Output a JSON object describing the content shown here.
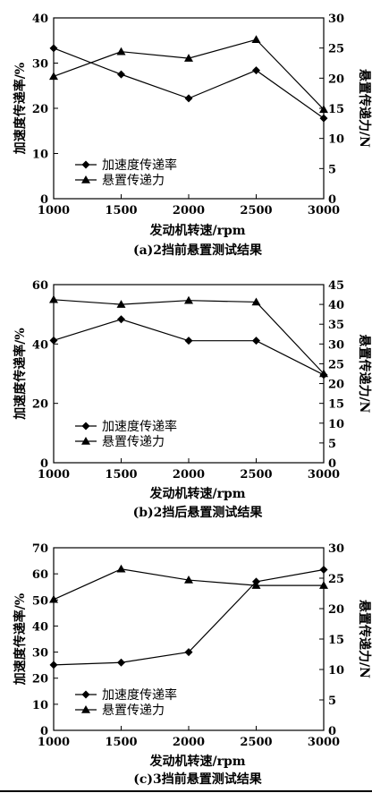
{
  "chart_data": [
    {
      "type": "line",
      "caption": "(a)2挡前悬置测试结果",
      "xlabel": "发动机转速/rpm",
      "ylabel_left": "加速度传递率/%",
      "ylabel_right": "悬置传递力/N",
      "x": [
        1000,
        1500,
        2000,
        2500,
        3000
      ],
      "xlim": [
        1000,
        3000
      ],
      "xticks": [
        1000,
        1500,
        2000,
        2500,
        3000
      ],
      "ylim_left": [
        0,
        40
      ],
      "yticks_left": [
        0,
        10,
        20,
        30,
        40
      ],
      "ylim_right": [
        0,
        30
      ],
      "yticks_right": [
        0,
        5,
        10,
        15,
        20,
        25,
        30
      ],
      "grid": false,
      "legend_position": "lower-left",
      "series": [
        {
          "name": "加速度传递率",
          "axis": "left",
          "marker": "diamond",
          "values": [
            33.3,
            27.5,
            22.2,
            28.4,
            17.8
          ]
        },
        {
          "name": "悬置传递力",
          "axis": "right",
          "marker": "triangle",
          "values": [
            20.3,
            24.4,
            23.3,
            26.4,
            14.8
          ]
        }
      ]
    },
    {
      "type": "line",
      "caption": "(b)2挡后悬置测试结果",
      "xlabel": "发动机转速/rpm",
      "ylabel_left": "加速度传递率/%",
      "ylabel_right": "悬置传递力/N",
      "x": [
        1000,
        1500,
        2000,
        2500,
        3000
      ],
      "xlim": [
        1000,
        3000
      ],
      "xticks": [
        1000,
        1500,
        2000,
        2500,
        3000
      ],
      "ylim_left": [
        0,
        60
      ],
      "yticks_left": [
        0,
        20,
        40,
        60
      ],
      "ylim_right": [
        0,
        45
      ],
      "yticks_right": [
        0,
        5,
        10,
        15,
        20,
        25,
        30,
        35,
        40,
        45
      ],
      "grid": false,
      "legend_position": "lower-left",
      "series": [
        {
          "name": "加速度传递率",
          "axis": "left",
          "marker": "diamond",
          "values": [
            41.2,
            48.3,
            41.1,
            41.1,
            29.6
          ]
        },
        {
          "name": "悬置传递力",
          "axis": "right",
          "marker": "triangle",
          "values": [
            41.2,
            40.0,
            41.0,
            40.6,
            22.5
          ]
        }
      ]
    },
    {
      "type": "line",
      "caption": "(c)3挡前悬置测试结果",
      "xlabel": "发动机转速/rpm",
      "ylabel_left": "加速度传递率/%",
      "ylabel_right": "悬置传递力/N",
      "x": [
        1000,
        1500,
        2000,
        2500,
        3000
      ],
      "xlim": [
        1000,
        3000
      ],
      "xticks": [
        1000,
        1500,
        2000,
        2500,
        3000
      ],
      "ylim_left": [
        0,
        70
      ],
      "yticks_left": [
        0,
        10,
        20,
        30,
        40,
        50,
        60,
        70
      ],
      "ylim_right": [
        0,
        30
      ],
      "yticks_right": [
        0,
        5,
        10,
        15,
        20,
        25,
        30
      ],
      "grid": false,
      "legend_position": "lower-left",
      "series": [
        {
          "name": "加速度传递率",
          "axis": "left",
          "marker": "diamond",
          "values": [
            25.1,
            26.0,
            30.0,
            57.0,
            61.6
          ]
        },
        {
          "name": "悬置传递力",
          "axis": "right",
          "marker": "triangle",
          "values": [
            21.5,
            26.5,
            24.7,
            23.8,
            23.8
          ]
        }
      ]
    }
  ]
}
